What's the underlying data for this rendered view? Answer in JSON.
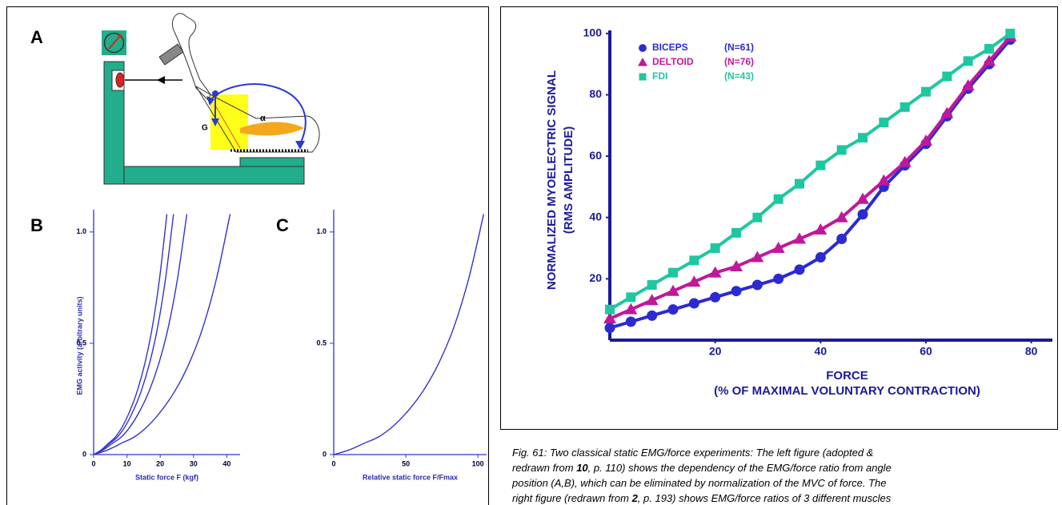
{
  "panels": {
    "a": "A",
    "b": "B",
    "c": "C"
  },
  "diagram": {
    "angle": "α",
    "gravity": "G"
  },
  "caption": {
    "lines": [
      [
        "Fig. 61: Two classical static EMG/force experiments: The left figure (adopted &"
      ],
      [
        "redrawn from ",
        "10",
        ", p. 110) shows the dependency of the EMG/force ratio from angle"
      ],
      [
        "position (A,B), which can be eliminated by normalization of the MVC of force. The"
      ],
      [
        "right figure (redrawn from ",
        "2",
        ", p. 193) shows EMG/force ratios of 3 different muscles"
      ]
    ]
  },
  "chart_data": [
    {
      "type": "line",
      "color": "#3333cc",
      "y_label": "EMG activity (arbitrary units)",
      "x_label": "Static force F (kgf)",
      "xlim": [
        0,
        44
      ],
      "ylim": [
        0,
        1.1
      ],
      "xticks": [
        0,
        10,
        20,
        30,
        40
      ],
      "yticks": [
        0,
        0.5,
        {
          "value": 1,
          "label": "1.0"
        }
      ],
      "series": [
        {
          "x": [
            0,
            2.2,
            4.4,
            6.6,
            8.8,
            11,
            13.2,
            15.4,
            17.6,
            19.8,
            22
          ],
          "values": [
            0,
            0.02,
            0.05,
            0.08,
            0.13,
            0.2,
            0.29,
            0.41,
            0.57,
            0.79,
            1.08
          ]
        },
        {
          "x": [
            0,
            2.4,
            4.8,
            7.2,
            9.6,
            12,
            14.4,
            16.8,
            19.2,
            21.6,
            24
          ],
          "values": [
            0,
            0.02,
            0.05,
            0.08,
            0.13,
            0.2,
            0.29,
            0.41,
            0.57,
            0.79,
            1.08
          ]
        },
        {
          "x": [
            0,
            2.8,
            5.6,
            8.4,
            11.2,
            14,
            16.8,
            19.6,
            22.4,
            25.2,
            28
          ],
          "values": [
            0,
            0.02,
            0.05,
            0.08,
            0.13,
            0.2,
            0.29,
            0.41,
            0.57,
            0.79,
            1.08
          ]
        },
        {
          "x": [
            0,
            4.1,
            8.2,
            12.3,
            16.4,
            20.5,
            24.6,
            28.7,
            32.8,
            36.9,
            41
          ],
          "values": [
            0,
            0.02,
            0.05,
            0.08,
            0.13,
            0.2,
            0.29,
            0.41,
            0.57,
            0.79,
            1.08
          ]
        }
      ]
    },
    {
      "type": "line",
      "color": "#3333cc",
      "x_label": "Relative static force F/Fmax",
      "xlim": [
        0,
        106
      ],
      "ylim": [
        0,
        1.1
      ],
      "xticks": [
        0,
        50,
        100
      ],
      "yticks": [
        0,
        0.5,
        {
          "value": 1,
          "label": "1.0"
        }
      ],
      "series": [
        {
          "x": [
            0,
            10.4,
            20.8,
            31.2,
            41.6,
            52,
            62.4,
            72.8,
            83.2,
            93.6,
            104
          ],
          "values": [
            0,
            0.02,
            0.05,
            0.08,
            0.13,
            0.2,
            0.29,
            0.41,
            0.57,
            0.79,
            1.08
          ]
        }
      ]
    },
    {
      "type": "line",
      "y_label": [
        "NORMALIZED MYOELECTRIC SIGNAL",
        "(RMS AMPLITUDE)"
      ],
      "x_label": [
        "FORCE",
        "(% OF MAXIMAL VOLUNTARY CONTRACTION)"
      ],
      "xlim": [
        0,
        84
      ],
      "ylim": [
        0,
        101
      ],
      "xticks": [
        20,
        40,
        60,
        80
      ],
      "yticks": [
        20,
        40,
        60,
        80,
        100
      ],
      "x": [
        0,
        4,
        8,
        12,
        16,
        20,
        24,
        28,
        32,
        36,
        40,
        44,
        48,
        52,
        56,
        60,
        64,
        68,
        72,
        76
      ],
      "series": [
        {
          "name": "BICEPS",
          "n_label": "(N=61)",
          "color": "#2b2bd0",
          "marker": "circle",
          "values": [
            4,
            6,
            8,
            10,
            12,
            14,
            16,
            18,
            20,
            23,
            27,
            33,
            41,
            50,
            57,
            64,
            73,
            82,
            90,
            98
          ]
        },
        {
          "name": "DELTOID",
          "n_label": "(N=76)",
          "color": "#c0189a",
          "marker": "triangle",
          "values": [
            7,
            10,
            13,
            16,
            19,
            22,
            24,
            27,
            30,
            33,
            36,
            40,
            46,
            52,
            58,
            65,
            74,
            83,
            91,
            99
          ]
        },
        {
          "name": "FDI",
          "n_label": "(N=43)",
          "color": "#1fc7a0",
          "marker": "square",
          "values": [
            10,
            14,
            18,
            22,
            26,
            30,
            35,
            40,
            46,
            51,
            57,
            62,
            66,
            71,
            76,
            81,
            86,
            91,
            95,
            100
          ]
        }
      ]
    }
  ]
}
